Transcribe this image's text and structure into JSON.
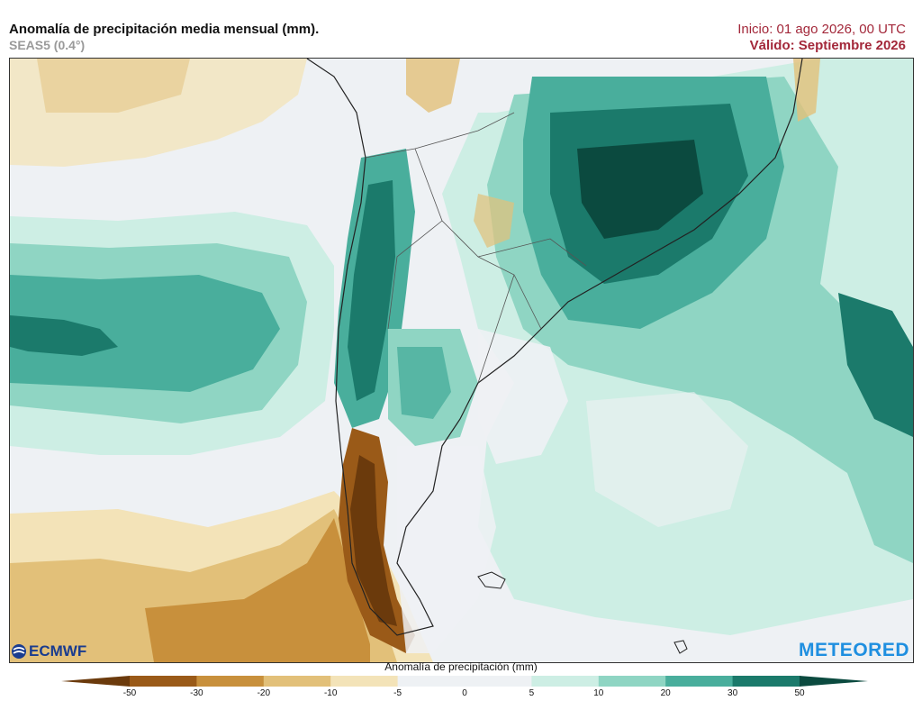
{
  "header": {
    "title": "Anomalía de precipitación media mensual (mm).",
    "model": "SEAS5 (0.4°)",
    "init": "Inicio: 01 ago 2026, 00 UTC",
    "valid": "Válido: Septiembre 2026"
  },
  "logos": {
    "ecmwf": "ECMWF",
    "meteored": "METEORED"
  },
  "legend": {
    "title": "Anomalía de precipitación (mm)",
    "ticks": [
      "-50",
      "-30",
      "-20",
      "-10",
      "-5",
      "0",
      "5",
      "10",
      "20",
      "30",
      "50"
    ],
    "colors": [
      "#6b3a0c",
      "#9a5a18",
      "#c8903c",
      "#e2c079",
      "#f3e3b8",
      "#eef1f4",
      "#eef1f4",
      "#cdeee4",
      "#8fd5c3",
      "#49ae9c",
      "#1b7a6b",
      "#0b4a3f"
    ]
  }
}
